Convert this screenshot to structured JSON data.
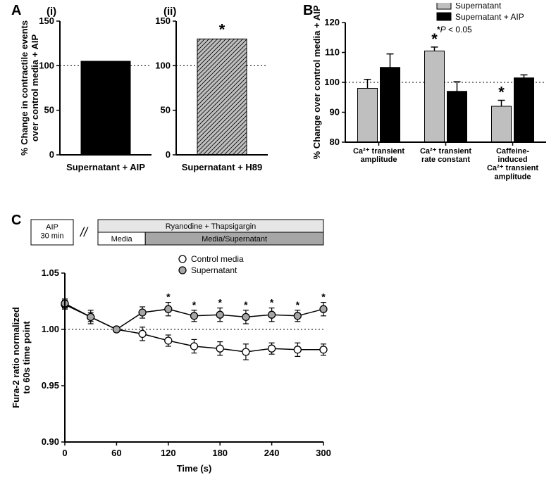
{
  "panelA": {
    "label": "A",
    "sub_i": "(i)",
    "sub_ii": "(ii)",
    "ylabel_line1": "% Change in contractile events",
    "ylabel_line2": "over control media + AIP",
    "ylabel_fontsize": 13,
    "ylim": [
      0,
      150
    ],
    "yticks": [
      0,
      50,
      100,
      150
    ],
    "ref_line": 100,
    "chart_i": {
      "xcat": "Supernatant + AIP",
      "value": 105,
      "fill": "#000000",
      "pattern": "solid",
      "star": false
    },
    "chart_ii": {
      "xcat": "Supernatant + H89",
      "value": 130,
      "fill": "#bfbfbf",
      "pattern": "hatch",
      "star": true
    },
    "label_fontsize": 13,
    "tick_fontsize": 13,
    "axis_color": "#000000",
    "bg": "#ffffff"
  },
  "panelB": {
    "label": "B",
    "ylabel": "% Change over control media + AIP",
    "ylabel_fontsize": 13,
    "ylim": [
      80,
      120
    ],
    "yticks": [
      80,
      90,
      100,
      110,
      120
    ],
    "ref_line": 100,
    "legend": {
      "items": [
        {
          "label": "Supernatant",
          "fill": "#bfbfbf"
        },
        {
          "label": "Supernatant + AIP",
          "fill": "#000000"
        }
      ],
      "note_prefix": "*",
      "note_italic": "P",
      "note_rest": " < 0.05"
    },
    "groups": [
      {
        "label_lines": [
          "Ca²⁺ transient",
          "amplitude"
        ],
        "bars": [
          {
            "val": 98,
            "err": 3.0,
            "fill": "#bfbfbf",
            "star": false
          },
          {
            "val": 105,
            "err": 4.5,
            "fill": "#000000",
            "star": false
          }
        ]
      },
      {
        "label_lines": [
          "Ca²⁺ transient",
          "rate constant"
        ],
        "bars": [
          {
            "val": 110.5,
            "err": 1.3,
            "fill": "#bfbfbf",
            "star": true
          },
          {
            "val": 97,
            "err": 3.2,
            "fill": "#000000",
            "star": false
          }
        ]
      },
      {
        "label_lines": [
          "Caffeine-",
          "induced",
          "Ca²⁺ transient",
          "amplitude"
        ],
        "bars": [
          {
            "val": 92,
            "err": 2.0,
            "fill": "#bfbfbf",
            "star": true
          },
          {
            "val": 101.5,
            "err": 1.0,
            "fill": "#000000",
            "star": false
          }
        ]
      }
    ],
    "axis_color": "#000000",
    "bg": "#ffffff",
    "cat_fontsize": 11
  },
  "panelC": {
    "label": "C",
    "xlabel": "Time (s)",
    "ylabel_line1": "Fura-2 ratio normalized",
    "ylabel_line2": "to 60s time point",
    "ylabel_fontsize": 13,
    "xlim": [
      0,
      300
    ],
    "xticks": [
      0,
      60,
      120,
      180,
      240,
      300
    ],
    "ylim": [
      0.9,
      1.05
    ],
    "yticks": [
      0.9,
      0.95,
      1.0,
      1.05
    ],
    "ref_line": 1.0,
    "timeline": {
      "aip_label": "AIP\n30 min",
      "top_label": "Ryanodine + Thapsigargin",
      "top_fill": "#e6e6e6",
      "bot_left_label": "Media",
      "bot_left_fill": "#ffffff",
      "bot_right_label": "Media/Supernatant",
      "bot_right_fill": "#a6a6a6"
    },
    "series": [
      {
        "name": "Control media",
        "marker_fill": "#ffffff",
        "marker_stroke": "#000000",
        "x": [
          0,
          30,
          60,
          90,
          120,
          150,
          180,
          210,
          240,
          270,
          300
        ],
        "y": [
          1.022,
          1.011,
          1.0,
          0.996,
          0.99,
          0.985,
          0.983,
          0.98,
          0.983,
          0.982,
          0.982
        ],
        "err": [
          0.004,
          0.006,
          0.0,
          0.006,
          0.005,
          0.006,
          0.006,
          0.007,
          0.005,
          0.006,
          0.005
        ],
        "star": [
          false,
          false,
          false,
          false,
          false,
          false,
          false,
          false,
          false,
          false,
          false
        ]
      },
      {
        "name": "Supernatant",
        "marker_fill": "#a6a6a6",
        "marker_stroke": "#000000",
        "x": [
          0,
          30,
          60,
          90,
          120,
          150,
          180,
          210,
          240,
          270,
          300
        ],
        "y": [
          1.023,
          1.011,
          1.0,
          1.015,
          1.018,
          1.012,
          1.013,
          1.011,
          1.013,
          1.012,
          1.018
        ],
        "err": [
          0.004,
          0.004,
          0.0,
          0.005,
          0.006,
          0.005,
          0.006,
          0.006,
          0.006,
          0.005,
          0.006
        ],
        "star": [
          false,
          false,
          false,
          false,
          true,
          true,
          true,
          true,
          true,
          true,
          true
        ]
      }
    ],
    "marker_r": 5,
    "line_color": "#000000",
    "axis_color": "#000000",
    "bg": "#ffffff",
    "tick_fontsize": 13,
    "legend_fontsize": 12
  },
  "star_glyph": "*",
  "star_fontsize": 22
}
